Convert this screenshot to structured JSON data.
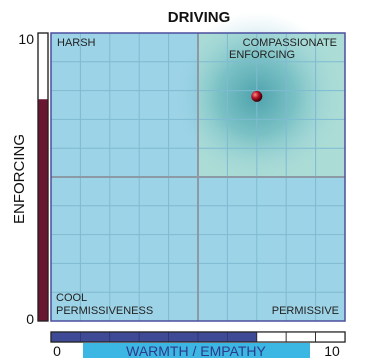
{
  "chart_data": {
    "type": "scatter",
    "title": "DRIVING",
    "xlabel": "WARMTH / EMPATHY",
    "ylabel": "ENFORCING",
    "xlim": [
      0,
      10
    ],
    "ylim": [
      0,
      10
    ],
    "x_ticks": [
      "0",
      "10"
    ],
    "y_ticks": [
      "0",
      "10"
    ],
    "grid": true,
    "quadrants": {
      "top_left": "HARSH",
      "top_right": [
        "COMPASSIONATE",
        "ENFORCING"
      ],
      "bottom_left": [
        "COOL",
        "PERMISSIVENESS"
      ],
      "bottom_right": "PERMISSIVE"
    },
    "points": [
      {
        "x": 7.0,
        "y": 7.8
      }
    ],
    "x_scale_bar": {
      "filled": 7,
      "total": 10
    },
    "y_scale_bar": {
      "filled": 7.7,
      "total": 10
    },
    "colors": {
      "plot_bg": "#9dd3e6",
      "grid": "#7fbad2",
      "quadrant_line": "#8c9aa6",
      "plot_border": "#4b4e9e",
      "hotspot": "#2f8e9e",
      "point": "#b01020",
      "x_bar_fill": "#3f4a97",
      "y_bar_fill": "#6b1630",
      "x_label_bg": "#3cb6e3",
      "x_label_text": "#2e3b8a"
    }
  }
}
